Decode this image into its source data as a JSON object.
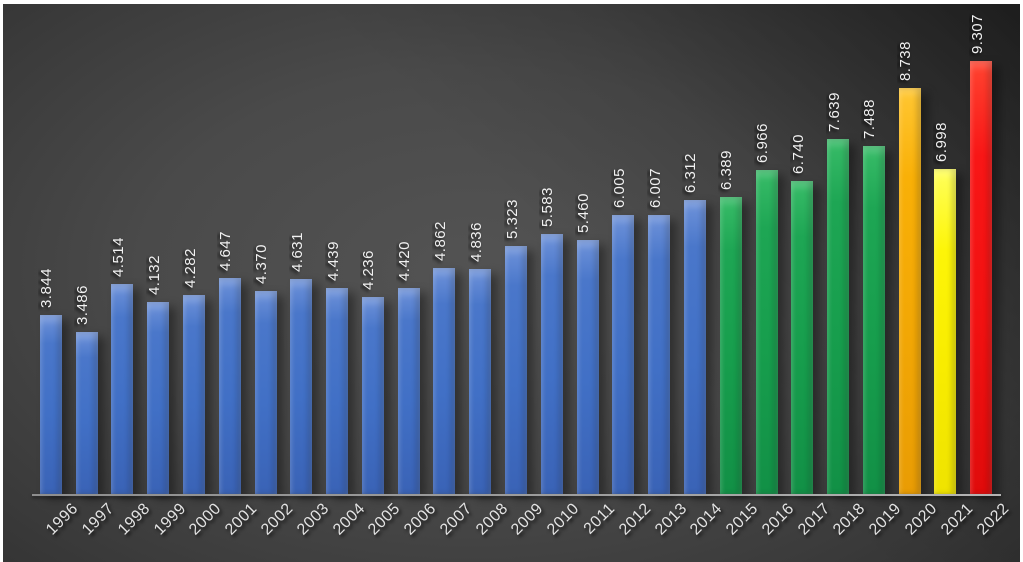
{
  "chart_data": {
    "type": "bar",
    "title": "",
    "xlabel": "",
    "ylabel": "",
    "categories": [
      "1996",
      "1997",
      "1998",
      "1999",
      "2000",
      "2001",
      "2002",
      "2003",
      "2004",
      "2005",
      "2006",
      "2007",
      "2008",
      "2009",
      "2010",
      "2011",
      "2012",
      "2013",
      "2014",
      "2015",
      "2016",
      "2017",
      "2018",
      "2019",
      "2020",
      "2021",
      "2022"
    ],
    "values": [
      3.844,
      3.486,
      4.514,
      4.132,
      4.282,
      4.647,
      4.37,
      4.631,
      4.439,
      4.236,
      4.42,
      4.862,
      4.836,
      5.323,
      5.583,
      5.46,
      6.005,
      6.007,
      6.312,
      6.389,
      6.966,
      6.74,
      7.639,
      7.488,
      8.738,
      6.998,
      9.307
    ],
    "value_labels": [
      "3.844",
      "3.486",
      "4.514",
      "4.132",
      "4.282",
      "4.647",
      "4.370",
      "4.631",
      "4.439",
      "4.236",
      "4.420",
      "4.862",
      "4.836",
      "5.323",
      "5.583",
      "5.460",
      "6.005",
      "6.007",
      "6.312",
      "6.389",
      "6.966",
      "6.740",
      "7.639",
      "7.488",
      "8.738",
      "6.998",
      "9.307"
    ],
    "bar_color_keys": [
      "blue",
      "blue",
      "blue",
      "blue",
      "blue",
      "blue",
      "blue",
      "blue",
      "blue",
      "blue",
      "blue",
      "blue",
      "blue",
      "blue",
      "blue",
      "blue",
      "blue",
      "blue",
      "blue",
      "green",
      "green",
      "green",
      "green",
      "green",
      "amber",
      "yellow",
      "red"
    ],
    "palette": {
      "blue": "#4472c4",
      "green": "#1aa352",
      "amber": "#f2a705",
      "yellow": "#f8ec00",
      "red": "#f21111"
    },
    "ylim": [
      0,
      9.307
    ],
    "grid": false,
    "legend": null,
    "x_tick_rotation_deg": 45,
    "value_label_rotation_deg": 90,
    "theme": {
      "frame_white": "#ffffff",
      "canvas_center": "#4d4d4d",
      "canvas_corner_dark": "#222222",
      "axis_line": "#9d9d9d",
      "value_label_text": "#f1f1f1",
      "year_label_text": "#e3e3e3"
    }
  }
}
